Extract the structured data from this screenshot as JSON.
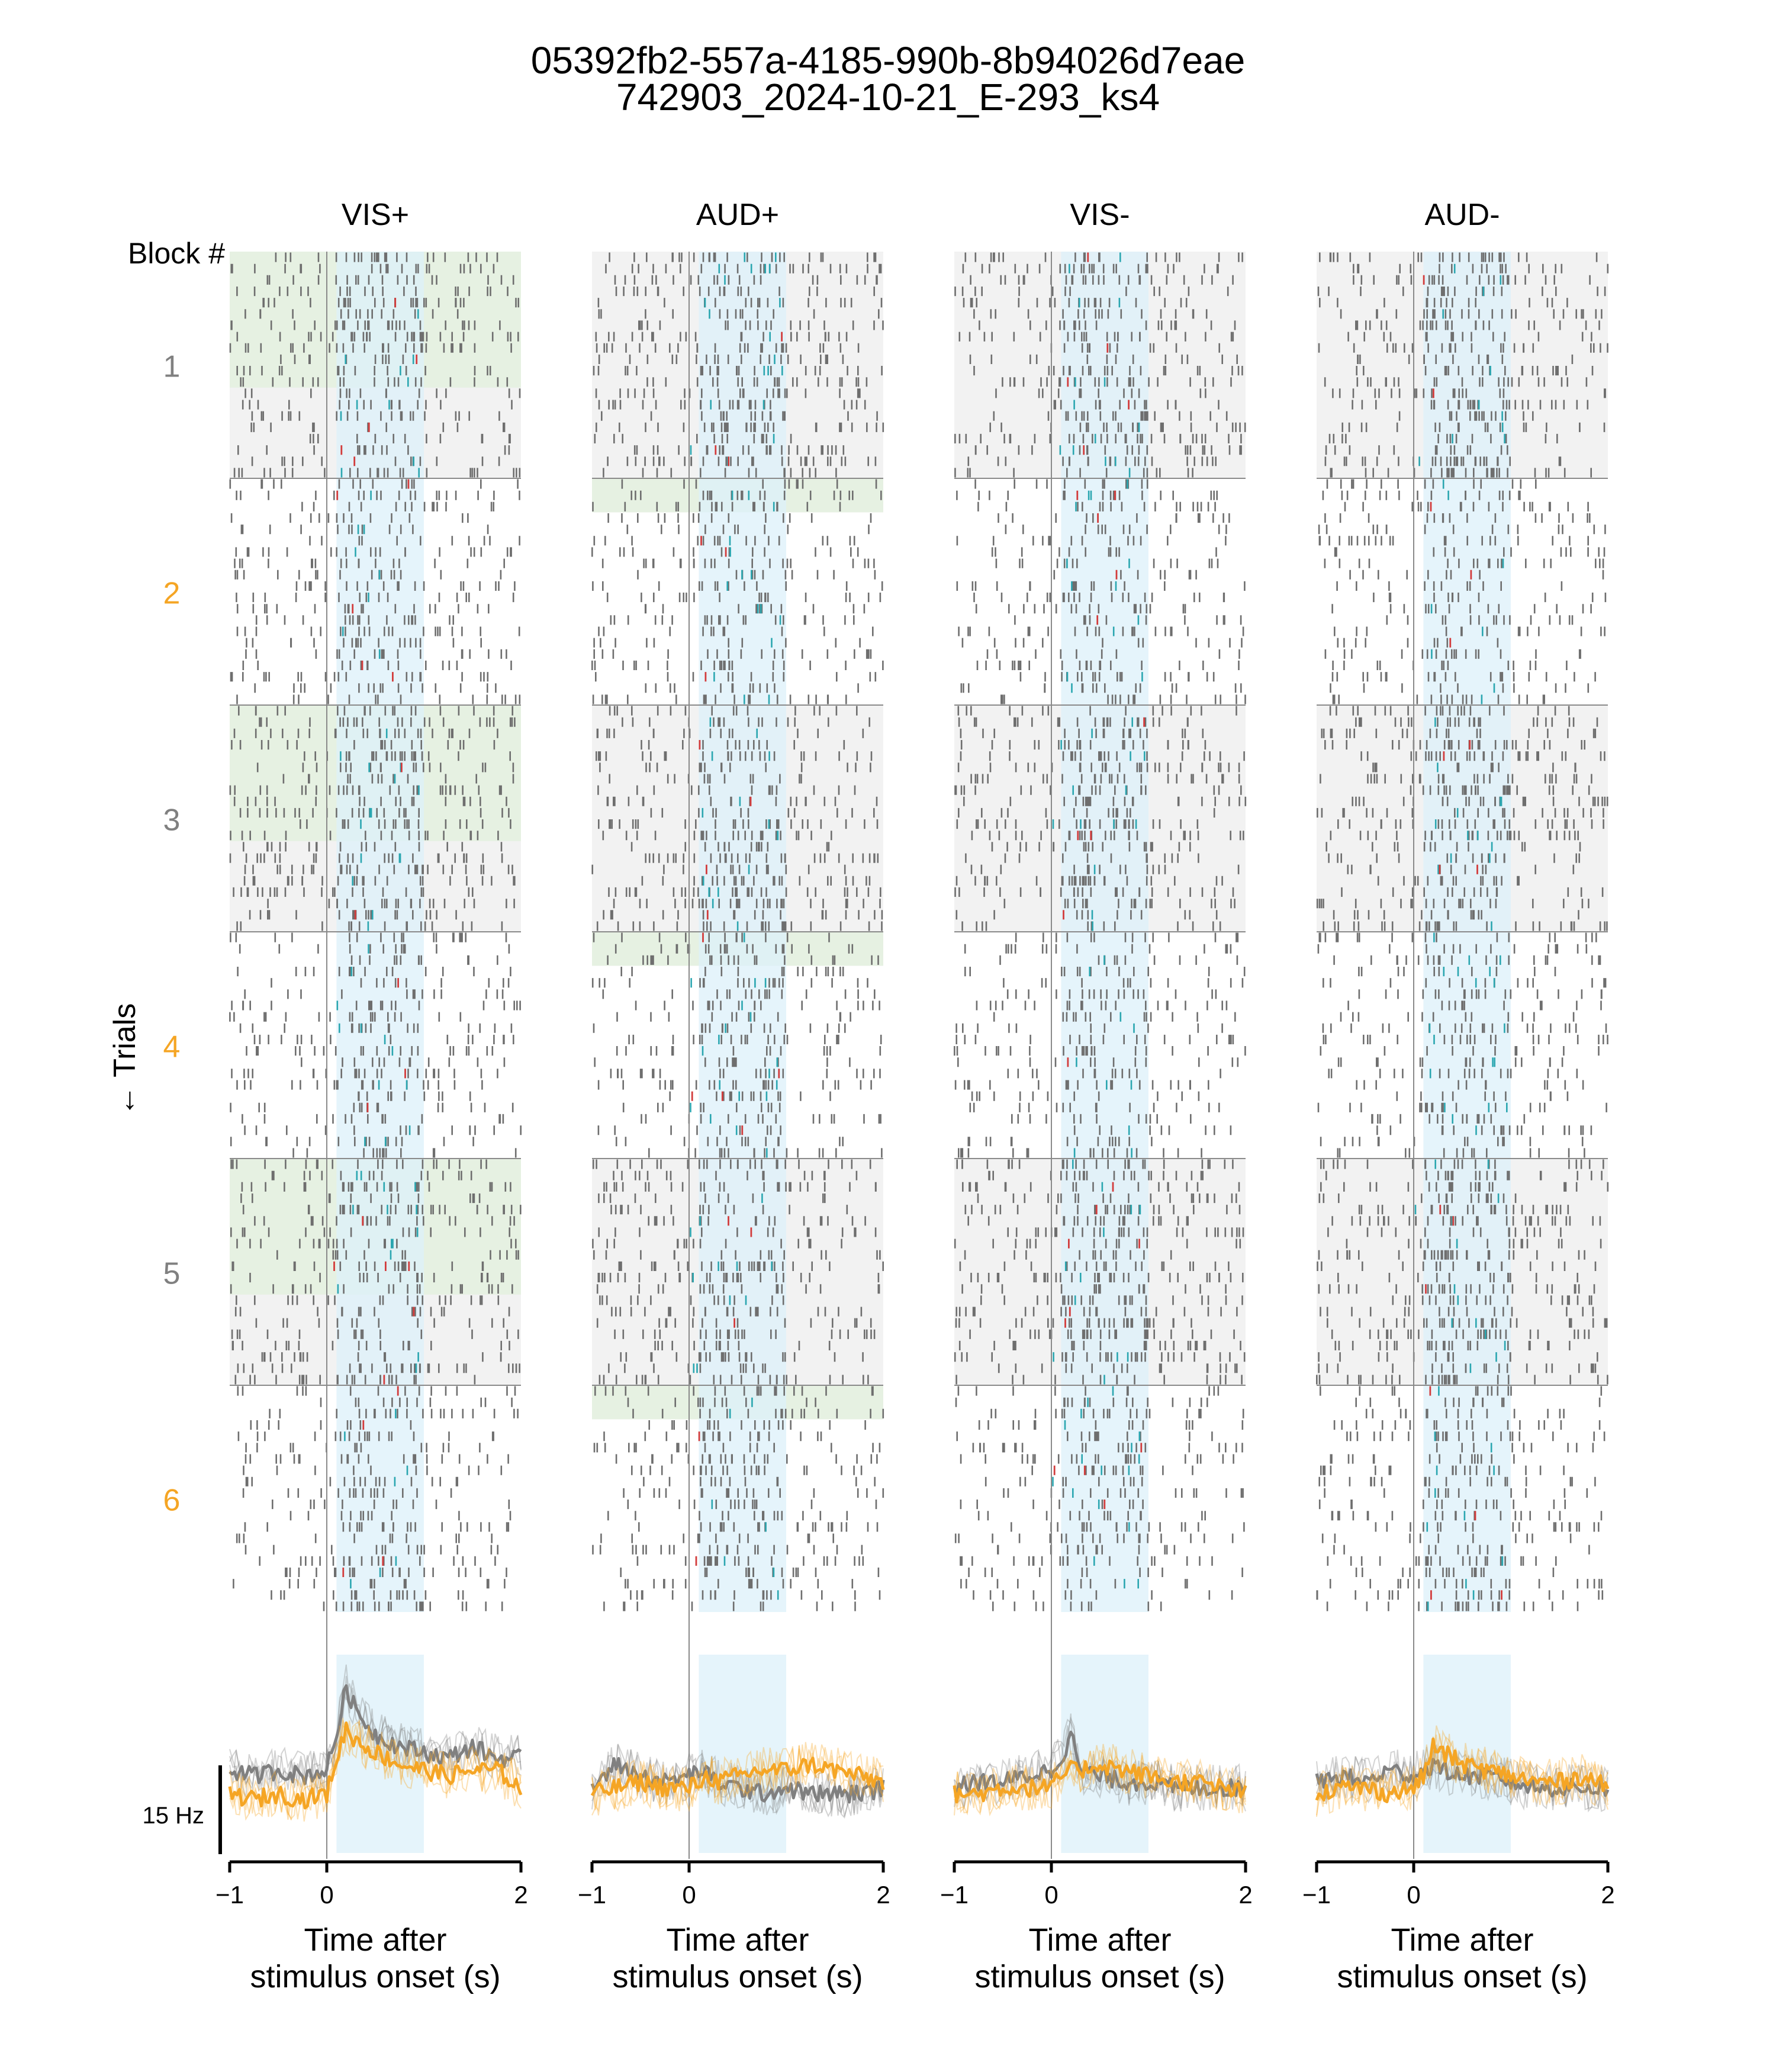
{
  "title": {
    "line1": "05392fb2-557a-4185-990b-8b94026d7eae",
    "line2": "742903_2024-10-21_E-293_ks4"
  },
  "colors": {
    "block_label_gray": "#808080",
    "block_label_orange": "#f5a524",
    "raster_bg_gray": "#f2f2f2",
    "raster_bg_green": "#e6f1e2",
    "stim_window_blue": "#dcf0fa",
    "spike": "#6e6e6e",
    "spike_teal": "#2aa6b0",
    "spike_red": "#d23c3c",
    "psth_gray": "#808080",
    "psth_orange": "#f5a524"
  },
  "labels": {
    "block_header": "Block #",
    "trials_axis": "← Trials",
    "scale_bar": "15 Hz"
  },
  "chart_data": {
    "type": "raster+psth",
    "panels": [
      {
        "name": "VIS+",
        "xlabel": "Time after\nstimulus onset (s)",
        "xlim": [
          -1,
          2
        ],
        "xticks": [
          "−1",
          "0",
          "2"
        ],
        "xtick_values": [
          -1,
          0,
          2
        ],
        "stim_window": [
          0.1,
          1.0
        ],
        "highlight_rows": [
          [
            1,
            0,
            12
          ],
          [
            3,
            0,
            12
          ],
          [
            5,
            0,
            12
          ]
        ]
      },
      {
        "name": "AUD+",
        "xlabel": "Time after\nstimulus onset (s)",
        "xlim": [
          -1,
          2
        ],
        "xticks": [
          "−1",
          "0",
          "2"
        ],
        "xtick_values": [
          -1,
          0,
          2
        ],
        "stim_window": [
          0.1,
          1.0
        ],
        "highlight_rows": [
          [
            2,
            0,
            3
          ],
          [
            4,
            0,
            3
          ],
          [
            6,
            0,
            3
          ]
        ]
      },
      {
        "name": "VIS-",
        "xlabel": "Time after\nstimulus onset (s)",
        "xlim": [
          -1,
          2
        ],
        "xticks": [
          "−1",
          "0",
          "2"
        ],
        "xtick_values": [
          -1,
          0,
          2
        ],
        "stim_window": [
          0.1,
          1.0
        ],
        "highlight_rows": []
      },
      {
        "name": "AUD-",
        "xlabel": "Time after\nstimulus onset (s)",
        "xlim": [
          -1,
          2
        ],
        "xticks": [
          "−1",
          "0",
          "2"
        ],
        "xtick_values": [
          -1,
          0,
          2
        ],
        "stim_window": [
          0.1,
          1.0
        ],
        "highlight_rows": []
      }
    ],
    "blocks": [
      {
        "label": "1",
        "color": "#808080",
        "context": "VIS"
      },
      {
        "label": "2",
        "color": "#f5a524",
        "context": "AUD"
      },
      {
        "label": "3",
        "color": "#808080",
        "context": "VIS"
      },
      {
        "label": "4",
        "color": "#f5a524",
        "context": "AUD"
      },
      {
        "label": "5",
        "color": "#808080",
        "context": "VIS"
      },
      {
        "label": "6",
        "color": "#f5a524",
        "context": "AUD"
      }
    ],
    "psth": {
      "time": [
        -1,
        -0.75,
        -0.5,
        -0.25,
        0,
        0.1,
        0.2,
        0.3,
        0.5,
        0.75,
        1.0,
        1.25,
        1.5,
        1.75,
        2
      ],
      "scale_bar_hz": 15,
      "series": [
        {
          "panel": "VIS+",
          "color": "#808080",
          "values": [
            12,
            11,
            12,
            11,
            12,
            18,
            26,
            22,
            18,
            16,
            15,
            14,
            16,
            14,
            14
          ]
        },
        {
          "panel": "VIS+",
          "color": "#f5a524",
          "values": [
            8,
            7,
            8,
            7,
            8,
            14,
            19,
            17,
            15,
            13,
            12,
            11,
            12,
            12,
            9
          ]
        },
        {
          "panel": "AUD+",
          "color": "#808080",
          "values": [
            9,
            13,
            11,
            10,
            11,
            12,
            11,
            10,
            9,
            8,
            9,
            8,
            8,
            8,
            9
          ]
        },
        {
          "panel": "AUD+",
          "color": "#f5a524",
          "values": [
            8,
            9,
            10,
            9,
            9,
            10,
            11,
            10,
            11,
            12,
            12,
            13,
            12,
            11,
            10
          ]
        },
        {
          "panel": "VIS-",
          "color": "#808080",
          "values": [
            9,
            10,
            10,
            11,
            12,
            14,
            18,
            12,
            11,
            10,
            10,
            9,
            9,
            9,
            9
          ]
        },
        {
          "panel": "VIS-",
          "color": "#f5a524",
          "values": [
            8,
            8,
            9,
            9,
            9,
            11,
            12,
            12,
            13,
            12,
            11,
            10,
            10,
            9,
            8
          ]
        },
        {
          "panel": "AUD-",
          "color": "#808080",
          "values": [
            10,
            11,
            10,
            12,
            11,
            12,
            13,
            12,
            11,
            11,
            10,
            9,
            9,
            9,
            9
          ]
        },
        {
          "panel": "AUD-",
          "color": "#f5a524",
          "values": [
            8,
            9,
            9,
            8,
            9,
            11,
            16,
            15,
            13,
            12,
            11,
            10,
            10,
            11,
            9
          ]
        }
      ]
    }
  }
}
